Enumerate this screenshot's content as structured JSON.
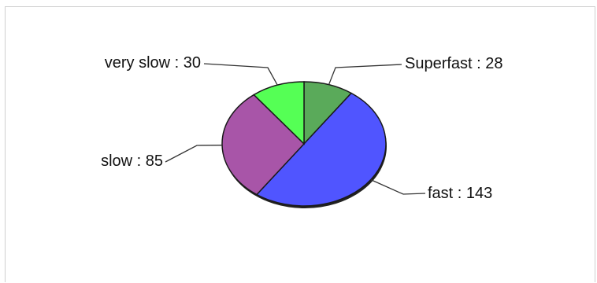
{
  "chart_data": {
    "type": "pie",
    "title": "",
    "slices": [
      {
        "label": "Superfast : 28",
        "category": "Superfast",
        "value": 28,
        "color": "#5aaa5a"
      },
      {
        "label": "fast : 143",
        "category": "fast",
        "value": 143,
        "color": "#5055ff"
      },
      {
        "label": "slow : 85",
        "category": "slow",
        "value": 85,
        "color": "#a855a8"
      },
      {
        "label": "very slow : 30",
        "category": "very slow",
        "value": 30,
        "color": "#55ff55"
      }
    ],
    "legend": "none"
  }
}
